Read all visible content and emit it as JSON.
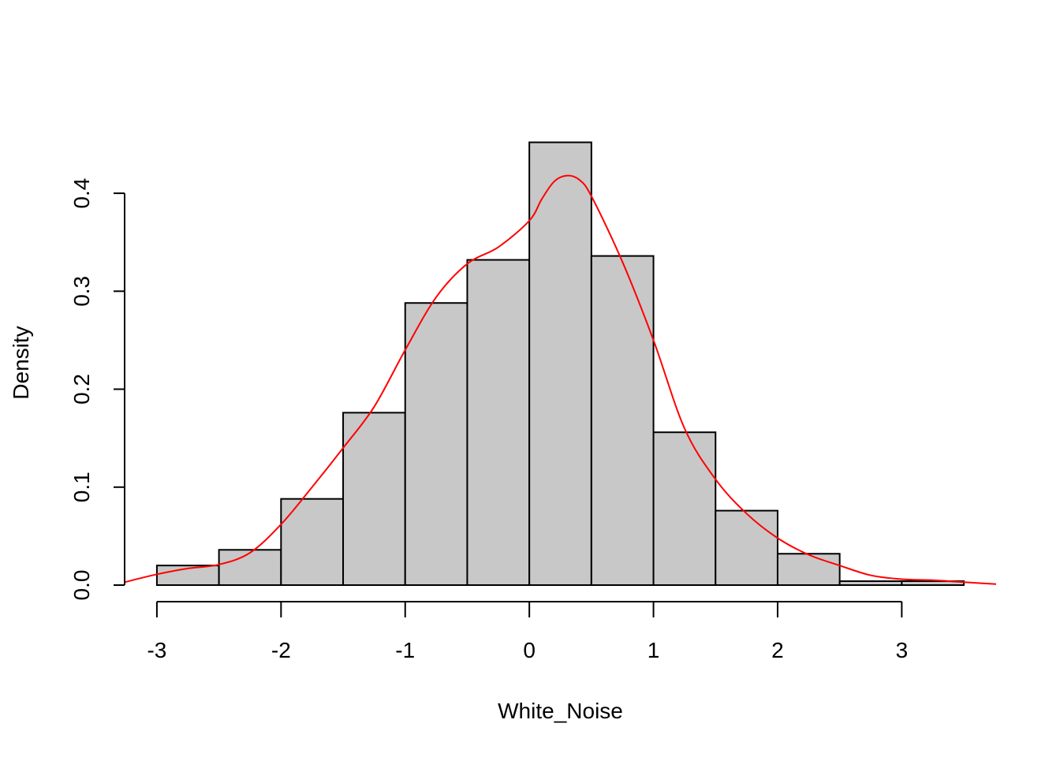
{
  "chart_data": {
    "type": "bar",
    "title": "",
    "xlabel": "White_Noise",
    "ylabel": "Density",
    "xlim": [
      -3.26,
      3.76
    ],
    "ylim": [
      0,
      0.4524
    ],
    "x_ticks": [
      {
        "value": -3,
        "label": "-3"
      },
      {
        "value": -2,
        "label": "-2"
      },
      {
        "value": -1,
        "label": "-1"
      },
      {
        "value": 0,
        "label": "0"
      },
      {
        "value": 1,
        "label": "1"
      },
      {
        "value": 2,
        "label": "2"
      },
      {
        "value": 3,
        "label": "3"
      }
    ],
    "y_ticks": [
      {
        "value": 0.0,
        "label": "0.0"
      },
      {
        "value": 0.1,
        "label": "0.1"
      },
      {
        "value": 0.2,
        "label": "0.2"
      },
      {
        "value": 0.3,
        "label": "0.3"
      },
      {
        "value": 0.4,
        "label": "0.4"
      }
    ],
    "bins": [
      {
        "start": -3.0,
        "end": -2.5,
        "density": 0.02
      },
      {
        "start": -2.5,
        "end": -2.0,
        "density": 0.036
      },
      {
        "start": -2.0,
        "end": -1.5,
        "density": 0.088
      },
      {
        "start": -1.5,
        "end": -1.0,
        "density": 0.176
      },
      {
        "start": -1.0,
        "end": -0.5,
        "density": 0.288
      },
      {
        "start": -0.5,
        "end": 0.0,
        "density": 0.332
      },
      {
        "start": 0.0,
        "end": 0.5,
        "density": 0.452
      },
      {
        "start": 0.5,
        "end": 1.0,
        "density": 0.336
      },
      {
        "start": 1.0,
        "end": 1.5,
        "density": 0.156
      },
      {
        "start": 1.5,
        "end": 2.0,
        "density": 0.076
      },
      {
        "start": 2.0,
        "end": 2.5,
        "density": 0.032
      },
      {
        "start": 2.5,
        "end": 3.0,
        "density": 0.004
      },
      {
        "start": 3.0,
        "end": 3.5,
        "density": 0.004
      }
    ],
    "density_curve": {
      "color": "#ff0000",
      "x": [
        -3.26,
        -3.0,
        -2.75,
        -2.5,
        -2.25,
        -2.0,
        -1.75,
        -1.5,
        -1.25,
        -1.0,
        -0.75,
        -0.5,
        -0.25,
        0.0,
        0.1,
        0.2,
        0.3,
        0.4,
        0.5,
        0.75,
        1.0,
        1.25,
        1.5,
        1.75,
        2.0,
        2.25,
        2.5,
        2.75,
        3.0,
        3.25,
        3.5,
        3.76
      ],
      "y": [
        0.003,
        0.011,
        0.017,
        0.021,
        0.033,
        0.062,
        0.1,
        0.14,
        0.182,
        0.24,
        0.294,
        0.328,
        0.345,
        0.372,
        0.394,
        0.412,
        0.418,
        0.414,
        0.397,
        0.33,
        0.25,
        0.16,
        0.108,
        0.073,
        0.048,
        0.031,
        0.02,
        0.01,
        0.006,
        0.005,
        0.003,
        0.001
      ]
    },
    "bar_fill": "#c8c8c8",
    "bar_stroke": "#000000",
    "grid": false,
    "legend": "none"
  }
}
